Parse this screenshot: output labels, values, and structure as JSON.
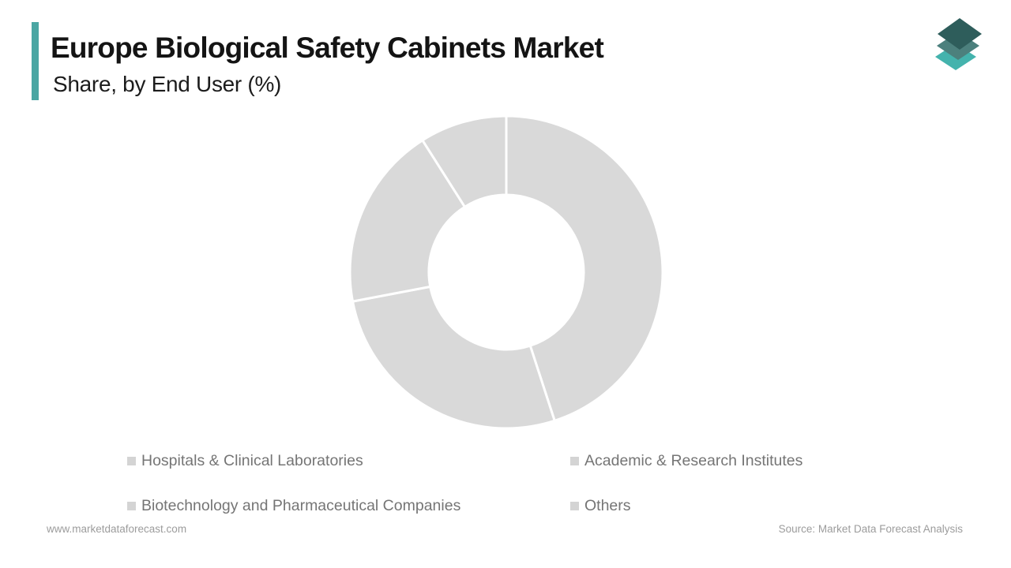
{
  "header": {
    "title": "Europe Biological Safety Cabinets Market",
    "subtitle": "Share, by End User (%)",
    "accent_color": "#4aa6a3"
  },
  "logo": {
    "layer_colors": {
      "top": "#2e5d5b",
      "middle": "#4c807d",
      "bottom": "#44b3ad"
    }
  },
  "chart_data": {
    "type": "pie",
    "variant": "donut",
    "title": "Europe Biological Safety Cabinets Market Share, by End User (%)",
    "unit": "%",
    "categories": [
      "Hospitals & Clinical Laboratories",
      "Academic & Research Institutes",
      "Biotechnology and Pharmaceutical Companies",
      "Others"
    ],
    "values": [
      45,
      27,
      19,
      9
    ],
    "start_angle_deg": 0,
    "clockwise": true,
    "inner_radius_ratio": 0.495,
    "segment_color": "#d9d9d9",
    "separator_color": "#ffffff",
    "legend_position": "bottom",
    "legend": [
      {
        "label": "Hospitals & Clinical Laboratories",
        "marker_color": "#d4d4d4"
      },
      {
        "label": "Academic & Research Institutes",
        "marker_color": "#d4d4d4"
      },
      {
        "label": "Biotechnology and Pharmaceutical Companies",
        "marker_color": "#d4d4d4"
      },
      {
        "label": "Others",
        "marker_color": "#d4d4d4"
      }
    ]
  },
  "footer": {
    "website": "www.marketdataforecast.com",
    "source": "Source: Market Data Forecast Analysis"
  }
}
